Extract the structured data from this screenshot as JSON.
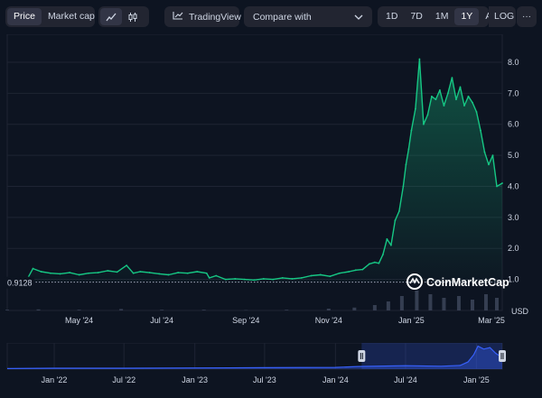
{
  "toolbar": {
    "price_tab": "Price",
    "market_cap_tab": "Market cap",
    "line_icon": "line-chart-icon",
    "candle_icon": "candlestick-icon",
    "tradingview_label": "TradingView",
    "tradingview_icon": "tradingview-chart-icon",
    "compare_label": "Compare with",
    "compare_icon": "chevron-down-icon",
    "ranges": [
      "1D",
      "7D",
      "1M",
      "1Y",
      "All"
    ],
    "active_range": "1Y",
    "log_label": "LOG",
    "more_label": "···"
  },
  "watermark": {
    "text": "CoinMarketCap",
    "icon": "coinmarketcap-logo-icon"
  },
  "colors": {
    "background": "#0d1421",
    "line": "#16c784",
    "navigator_line": "#3861fb",
    "reference_line": "#a1a7bb"
  },
  "chart_data": [
    {
      "type": "line",
      "ylabel": "USD",
      "xlim": [
        "2024-03-09",
        "2025-03-09"
      ],
      "ylim": [
        0,
        8.9
      ],
      "yticks": [
        1.0,
        2.0,
        3.0,
        4.0,
        5.0,
        6.0,
        7.0,
        8.0
      ],
      "ytick_labels": [
        "1.0",
        "2.0",
        "3.0",
        "4.0",
        "5.0",
        "6.0",
        "7.0",
        "8.0"
      ],
      "xticks": [
        "2024-05-01",
        "2024-07-01",
        "2024-09-01",
        "2024-11-01",
        "2025-01-01",
        "2025-03-01"
      ],
      "xtick_labels": [
        "May '24",
        "Jul '24",
        "Sep '24",
        "Nov '24",
        "Jan '25",
        "Mar '25"
      ],
      "reference_value": 0.9128,
      "reference_label": "0.9128",
      "series": [
        {
          "x": [
            "2024-03-09",
            "2024-03-18",
            "2024-03-24",
            "2024-03-28",
            "2024-04-03",
            "2024-04-10",
            "2024-04-17",
            "2024-04-24",
            "2024-05-01",
            "2024-05-08",
            "2024-05-15",
            "2024-05-22",
            "2024-05-29",
            "2024-06-05",
            "2024-06-10",
            "2024-06-15",
            "2024-06-22",
            "2024-06-29",
            "2024-07-06",
            "2024-07-13",
            "2024-07-20",
            "2024-07-27",
            "2024-08-03",
            "2024-08-05",
            "2024-08-10",
            "2024-08-17",
            "2024-08-24",
            "2024-08-31",
            "2024-09-07",
            "2024-09-14",
            "2024-09-21",
            "2024-09-28",
            "2024-10-05",
            "2024-10-12",
            "2024-10-19",
            "2024-10-26",
            "2024-11-02",
            "2024-11-09",
            "2024-11-16",
            "2024-11-21",
            "2024-11-26",
            "2024-12-01",
            "2024-12-05",
            "2024-12-08",
            "2024-12-11",
            "2024-12-14",
            "2024-12-17",
            "2024-12-20",
            "2024-12-23",
            "2024-12-26",
            "2024-12-28",
            "2024-12-30",
            "2025-01-01",
            "2025-01-04",
            "2025-01-07",
            "2025-01-10",
            "2025-01-13",
            "2025-01-16",
            "2025-01-19",
            "2025-01-22",
            "2025-01-25",
            "2025-01-28",
            "2025-01-31",
            "2025-02-03",
            "2025-02-06",
            "2025-02-09",
            "2025-02-12",
            "2025-02-15",
            "2025-02-18",
            "2025-02-21",
            "2025-02-24",
            "2025-02-27",
            "2025-03-02",
            "2025-03-05",
            "2025-03-09"
          ],
          "values": [
            0.95,
            0.98,
            1.03,
            1.35,
            1.25,
            1.2,
            1.18,
            1.22,
            1.15,
            1.2,
            1.22,
            1.28,
            1.24,
            1.45,
            1.2,
            1.25,
            1.22,
            1.18,
            1.15,
            1.22,
            1.2,
            1.25,
            1.2,
            1.05,
            1.12,
            1.0,
            1.02,
            1.0,
            0.98,
            1.02,
            1.0,
            1.05,
            1.02,
            1.05,
            1.12,
            1.15,
            1.1,
            1.2,
            1.25,
            1.3,
            1.32,
            1.5,
            1.55,
            1.52,
            1.8,
            2.3,
            2.1,
            2.9,
            3.2,
            4.0,
            4.7,
            5.2,
            5.8,
            6.5,
            8.1,
            6.0,
            6.3,
            6.9,
            6.8,
            7.1,
            6.6,
            7.0,
            7.5,
            6.8,
            7.2,
            6.6,
            6.9,
            6.7,
            6.4,
            5.8,
            5.1,
            4.7,
            5.0,
            4.0,
            4.1
          ]
        }
      ],
      "volume": {
        "x": [
          "2024-03-09",
          "2024-04-01",
          "2024-05-01",
          "2024-06-01",
          "2024-07-01",
          "2024-08-01",
          "2024-09-01",
          "2024-10-01",
          "2024-11-01",
          "2024-11-20",
          "2024-12-05",
          "2024-12-15",
          "2024-12-25",
          "2025-01-05",
          "2025-01-15",
          "2025-01-25",
          "2025-02-05",
          "2025-02-15",
          "2025-02-25",
          "2025-03-05"
        ],
        "values": [
          0.02,
          0.03,
          0.02,
          0.04,
          0.02,
          0.02,
          0.01,
          0.02,
          0.05,
          0.08,
          0.15,
          0.25,
          0.4,
          0.55,
          0.45,
          0.35,
          0.4,
          0.3,
          0.45,
          0.35
        ]
      }
    },
    {
      "type": "area",
      "xlim": [
        "2021-09-01",
        "2025-03-09"
      ],
      "xtick_labels": [
        "Jan '22",
        "Jul '22",
        "Jan '23",
        "Jul '23",
        "Jan '24",
        "Jul '24",
        "Jan '25"
      ],
      "xticks": [
        "2022-01-01",
        "2022-07-01",
        "2023-01-01",
        "2023-07-01",
        "2024-01-01",
        "2024-07-01",
        "2025-01-01"
      ],
      "selected_range": [
        "2024-03-09",
        "2025-03-09"
      ],
      "series": [
        {
          "x": [
            "2021-09-01",
            "2022-01-01",
            "2022-07-01",
            "2023-01-01",
            "2023-07-01",
            "2024-01-01",
            "2024-03-01",
            "2024-07-01",
            "2024-10-01",
            "2024-11-20",
            "2024-12-10",
            "2024-12-25",
            "2025-01-05",
            "2025-01-20",
            "2025-02-05",
            "2025-02-20",
            "2025-03-09"
          ],
          "values": [
            0.2,
            0.3,
            0.3,
            0.4,
            0.5,
            0.6,
            0.9,
            1.2,
            1.0,
            1.3,
            2.5,
            5.0,
            8.0,
            7.0,
            7.5,
            5.5,
            4.0
          ]
        }
      ]
    }
  ]
}
